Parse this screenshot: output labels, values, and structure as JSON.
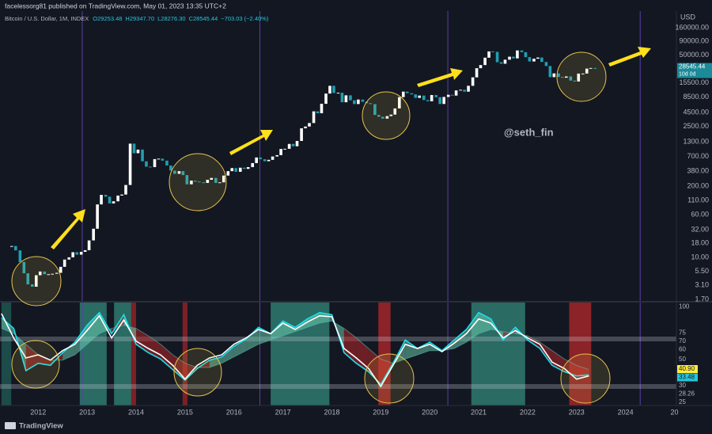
{
  "header": {
    "byline": "facelessorg81 published on TradingView.com, May 01, 2023 13:35 UTC+2",
    "symbol": "Bitcoin / U.S. Dollar, 1M, INDEX",
    "ohlc": [
      "O29253.48",
      "H29347.70",
      "L28276.30",
      "C28545.44",
      "−703.03 (−2.40%)"
    ]
  },
  "footer": "TradingView",
  "chart_data": [
    {
      "type": "candlestick",
      "unit": "USD",
      "log_scale": true,
      "grid": false,
      "up_color": "#ffffff",
      "down_color": "#1f9fb0",
      "annotations": [
        "@seth_fin"
      ],
      "last_price": 28545.44,
      "last_note": "10d 0d",
      "tag_color": "#1b8a99",
      "xlim": [
        2011.22,
        2025.04
      ],
      "ylim": [
        1.59,
        322000
      ],
      "yticks": [
        {
          "value": 160000,
          "label": "160000.00"
        },
        {
          "value": 90000,
          "label": "90000.00"
        },
        {
          "value": 50000,
          "label": "50000.00"
        },
        {
          "value": 15500,
          "label": "15500.00"
        },
        {
          "value": 8500,
          "label": "8500.00"
        },
        {
          "value": 4500,
          "label": "4500.00"
        },
        {
          "value": 2500,
          "label": "2500.00"
        },
        {
          "value": 1300,
          "label": "1300.00"
        },
        {
          "value": 700,
          "label": "700.00"
        },
        {
          "value": 380,
          "label": "380.00"
        },
        {
          "value": 200,
          "label": "200.00"
        },
        {
          "value": 110,
          "label": "110.00"
        },
        {
          "value": 60,
          "label": "60.00"
        },
        {
          "value": 32,
          "label": "32.00"
        },
        {
          "value": 18,
          "label": "18.00"
        },
        {
          "value": 10,
          "label": "10.00"
        },
        {
          "value": 5.5,
          "label": "5.50"
        },
        {
          "value": 3.1,
          "label": "3.10"
        },
        {
          "value": 1.7,
          "label": "1.70"
        }
      ],
      "x": [
        2011.46,
        2011.54,
        2011.63,
        2011.71,
        2011.79,
        2011.88,
        2011.96,
        2012.04,
        2012.13,
        2012.21,
        2012.29,
        2012.38,
        2012.46,
        2012.54,
        2012.63,
        2012.71,
        2012.79,
        2012.88,
        2012.96,
        2013.04,
        2013.13,
        2013.21,
        2013.29,
        2013.38,
        2013.46,
        2013.54,
        2013.63,
        2013.71,
        2013.79,
        2013.88,
        2013.96,
        2014.04,
        2014.13,
        2014.21,
        2014.29,
        2014.38,
        2014.46,
        2014.54,
        2014.63,
        2014.71,
        2014.79,
        2014.88,
        2014.96,
        2015.04,
        2015.13,
        2015.21,
        2015.29,
        2015.38,
        2015.46,
        2015.54,
        2015.63,
        2015.71,
        2015.79,
        2015.88,
        2015.96,
        2016.04,
        2016.13,
        2016.21,
        2016.29,
        2016.38,
        2016.46,
        2016.54,
        2016.63,
        2016.71,
        2016.79,
        2016.88,
        2016.96,
        2017.04,
        2017.13,
        2017.21,
        2017.29,
        2017.38,
        2017.46,
        2017.54,
        2017.63,
        2017.71,
        2017.79,
        2017.88,
        2017.96,
        2018.04,
        2018.13,
        2018.21,
        2018.29,
        2018.38,
        2018.46,
        2018.54,
        2018.63,
        2018.71,
        2018.79,
        2018.88,
        2018.96,
        2019.04,
        2019.13,
        2019.21,
        2019.29,
        2019.38,
        2019.46,
        2019.54,
        2019.63,
        2019.71,
        2019.79,
        2019.88,
        2019.96,
        2020.04,
        2020.13,
        2020.21,
        2020.29,
        2020.38,
        2020.46,
        2020.54,
        2020.63,
        2020.71,
        2020.79,
        2020.88,
        2020.96,
        2021.04,
        2021.13,
        2021.21,
        2021.29,
        2021.38,
        2021.46,
        2021.54,
        2021.63,
        2021.71,
        2021.79,
        2021.88,
        2021.96,
        2022.04,
        2022.13,
        2022.21,
        2022.29,
        2022.38,
        2022.46,
        2022.54,
        2022.63,
        2022.71,
        2022.79,
        2022.88,
        2022.96,
        2023.04,
        2023.13,
        2023.21,
        2023.29,
        2023.38
      ],
      "values": [
        16.1,
        13.4,
        8.2,
        5.1,
        3.2,
        2.9,
        4.7,
        5.5,
        4.9,
        4.9,
        5.0,
        5.2,
        6.7,
        9.1,
        10.0,
        12.4,
        11.2,
        12.6,
        13.5,
        20.4,
        33.4,
        93,
        139,
        129,
        97,
        106,
        135,
        141,
        211,
        1205,
        805,
        938,
        573,
        457,
        448,
        628,
        640,
        589,
        480,
        387,
        338,
        378,
        320,
        217,
        254,
        244,
        236,
        230,
        263,
        284,
        230,
        236,
        314,
        378,
        430,
        368,
        437,
        416,
        448,
        531,
        673,
        624,
        575,
        609,
        701,
        742,
        964,
        970,
        1190,
        1080,
        1350,
        2300,
        2480,
        2875,
        4700,
        4340,
        6470,
        9950,
        13800,
        10200,
        10300,
        6900,
        9240,
        7500,
        6400,
        7730,
        7030,
        6630,
        6370,
        4040,
        3740,
        3460,
        3850,
        4100,
        5320,
        8570,
        10800,
        10100,
        9600,
        8300,
        9150,
        7570,
        7190,
        9350,
        8540,
        6420,
        8630,
        9450,
        9140,
        11350,
        11680,
        10780,
        13800,
        19700,
        28990,
        33100,
        45200,
        58800,
        57700,
        37300,
        35000,
        41500,
        47100,
        43800,
        61300,
        57000,
        46200,
        38500,
        43200,
        45500,
        37700,
        31800,
        19900,
        23300,
        20050,
        19400,
        20500,
        17200,
        16550,
        23100,
        23150,
        28500,
        29250,
        28545
      ]
    },
    {
      "type": "line",
      "grid": false,
      "xlim": [
        2011.22,
        2025.04
      ],
      "xticks": [
        2012,
        2013,
        2014,
        2015,
        2016,
        2017,
        2018,
        2019,
        2020,
        2021,
        2022,
        2023,
        2024,
        {
          "value": 2025,
          "label": "20"
        }
      ],
      "ylim": [
        12,
        109.5
      ],
      "yticks": [
        100,
        75,
        70,
        60,
        50,
        30,
        28.26,
        25
      ],
      "tags": [
        {
          "value": 40.9,
          "label": "40.90",
          "color": "#ffeb3b"
        },
        {
          "value": 33.48,
          "color": "#26c6da"
        }
      ],
      "bands": [
        75,
        30
      ],
      "vlines": [
        2012.9,
        2016.53,
        2020.37,
        2024.3
      ],
      "vline_color": "#5b3fa6",
      "zones": [
        {
          "from": 2011.25,
          "to": 2011.45,
          "color": "#1d4b4a"
        },
        {
          "from": 2012.85,
          "to": 2013.4,
          "color": "#2a6b63"
        },
        {
          "from": 2013.55,
          "to": 2013.95,
          "color": "#2a6b63"
        },
        {
          "from": 2016.75,
          "to": 2017.95,
          "color": "#2a6b63"
        },
        {
          "from": 2020.85,
          "to": 2021.95,
          "color": "#2a6b63"
        },
        {
          "from": 2013.9,
          "to": 2014.0,
          "color": "#7a2026"
        },
        {
          "from": 2014.95,
          "to": 2015.05,
          "color": "#7a2026"
        },
        {
          "from": 2018.95,
          "to": 2019.2,
          "color": "#8b2328"
        },
        {
          "from": 2022.85,
          "to": 2023.3,
          "color": "#8b2328"
        }
      ],
      "ribbon_colors": [
        "#6fd6b6",
        "#c62828"
      ],
      "x": [
        2011.25,
        2011.5,
        2011.75,
        2012.0,
        2012.25,
        2012.5,
        2012.75,
        2013.0,
        2013.25,
        2013.5,
        2013.75,
        2014.0,
        2014.25,
        2014.5,
        2014.75,
        2015.0,
        2015.25,
        2015.5,
        2015.75,
        2016.0,
        2016.25,
        2016.5,
        2016.75,
        2017.0,
        2017.25,
        2017.5,
        2017.75,
        2018.0,
        2018.25,
        2018.5,
        2018.75,
        2019.0,
        2019.25,
        2019.5,
        2019.75,
        2020.0,
        2020.25,
        2020.5,
        2020.75,
        2021.0,
        2021.25,
        2021.5,
        2021.75,
        2022.0,
        2022.25,
        2022.5,
        2022.75,
        2023.0,
        2023.25
      ],
      "series": [
        {
          "color": "#ffffff",
          "values": [
            99,
            76,
            57,
            60,
            55,
            64,
            70,
            83,
            97,
            76,
            93,
            73,
            66,
            60,
            50,
            37,
            50,
            57,
            60,
            70,
            76,
            84,
            80,
            90,
            84,
            91,
            97,
            96,
            66,
            57,
            47,
            30,
            50,
            70,
            66,
            70,
            63,
            71,
            80,
            94,
            90,
            76,
            83,
            76,
            70,
            53,
            47,
            37,
            40
          ]
        },
        {
          "color": "#18e0f0",
          "values": [
            95,
            85,
            45,
            52,
            50,
            62,
            72,
            88,
            100,
            80,
            98,
            70,
            62,
            56,
            46,
            36,
            47,
            55,
            58,
            68,
            75,
            86,
            80,
            92,
            86,
            94,
            100,
            98,
            62,
            52,
            44,
            32,
            52,
            74,
            66,
            72,
            64,
            74,
            84,
            100,
            94,
            74,
            86,
            74,
            66,
            50,
            44,
            40,
            41
          ]
        },
        {
          "color": "#4db6ac",
          "values": [
            85,
            80,
            70,
            60,
            55,
            55,
            60,
            70,
            80,
            85,
            88,
            85,
            78,
            70,
            60,
            52,
            48,
            48,
            52,
            58,
            64,
            70,
            74,
            78,
            82,
            86,
            90,
            92,
            85,
            76,
            66,
            56,
            52,
            56,
            60,
            64,
            64,
            66,
            72,
            80,
            84,
            82,
            80,
            78,
            72,
            64,
            56,
            50,
            46
          ]
        }
      ]
    }
  ]
}
